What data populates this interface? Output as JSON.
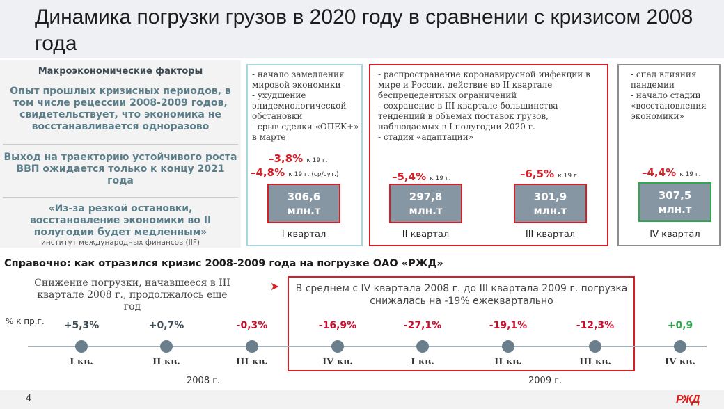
{
  "title": "Динамика погрузки грузов в 2020 году в сравнении с кризисом 2008 года",
  "macro": {
    "heading": "Макроэкономические факторы",
    "p1": "Опыт прошлых кризисных периодов, в том числе рецессии 2008-2009 годов, свидетельствует, что экономика не восстанавливается одноразово",
    "p2": "Выход на траекторию устойчивого роста ВВП ожидается только к концу 2021 года",
    "p3": "«Из-за резкой остановки, восстановление экономики во II полугодии будет медленным»",
    "source": "институт международных финансов (IIF)"
  },
  "q1": {
    "bullets": [
      "- начало замедления мировой экономики",
      "- ухудшение эпидемиологической обстановки",
      "- срыв сделки «ОПЕК+» в марте"
    ],
    "pct1": "–3,8%",
    "pct1_note": "к 19 г.",
    "pct2": "–4,8%",
    "pct2_note": "к 19 г. (ср/сут.)",
    "value": "306,6",
    "unit": "млн.т",
    "label": "I квартал"
  },
  "q23": {
    "bullets": [
      "- распространение коронавирусной инфекции в мире и России, действие во II квартале беспрецедентных ограничений",
      "- сохранение в III квартале большинства тенденций в объемах поставок грузов, наблюдаемых в I полугодии 2020 г.",
      "- стадия «адаптации»"
    ],
    "q2_pct": "–5,4%",
    "q2_note": "к 19 г.",
    "q2_value": "297,8",
    "q2_unit": "млн.т",
    "q2_label": "II квартал",
    "q3_pct": "–6,5%",
    "q3_note": "к 19 г.",
    "q3_value": "301,9",
    "q3_unit": "млн.т",
    "q3_label": "III квартал"
  },
  "q4": {
    "bullets": [
      "- спад влияния пандемии",
      "- начало стадии «восстановления экономики»"
    ],
    "pct": "–4,4%",
    "note": "к 19 г.",
    "value": "307,5",
    "unit": "млн.т",
    "label": "IV квартал"
  },
  "reference": {
    "title": "Справочно: как отразился кризис 2008-2009 года на погрузке ОАО «РЖД»",
    "drop_text": "Снижение погрузки, начавшееся в III квартале 2008 г., продолжалось еще год",
    "avg_text": "В среднем с IV квартала 2008 г. до III квартала 2009 г. погрузка снижалась на -19% ежеквартально",
    "unit": "% к пр.г.",
    "points": [
      {
        "value": "+5,3%",
        "quarter": "I кв.",
        "color": "#3d4b55"
      },
      {
        "value": "+0,7%",
        "quarter": "II кв.",
        "color": "#3d4b55"
      },
      {
        "value": "-0,3%",
        "quarter": "III кв.",
        "color": "#c8102e"
      },
      {
        "value": "-16,9%",
        "quarter": "IV кв.",
        "color": "#c8102e"
      },
      {
        "value": "-27,1%",
        "quarter": "I кв.",
        "color": "#c8102e"
      },
      {
        "value": "-19,1%",
        "quarter": "II кв.",
        "color": "#c8102e"
      },
      {
        "value": "-12,3%",
        "quarter": "III кв.",
        "color": "#c8102e"
      },
      {
        "value": "+0,9",
        "quarter": "IV кв.",
        "color": "#2fa84f"
      }
    ],
    "year1": "2008 г.",
    "year2": "2009 г."
  },
  "footer": {
    "page": "4",
    "logo": "РЖД"
  }
}
